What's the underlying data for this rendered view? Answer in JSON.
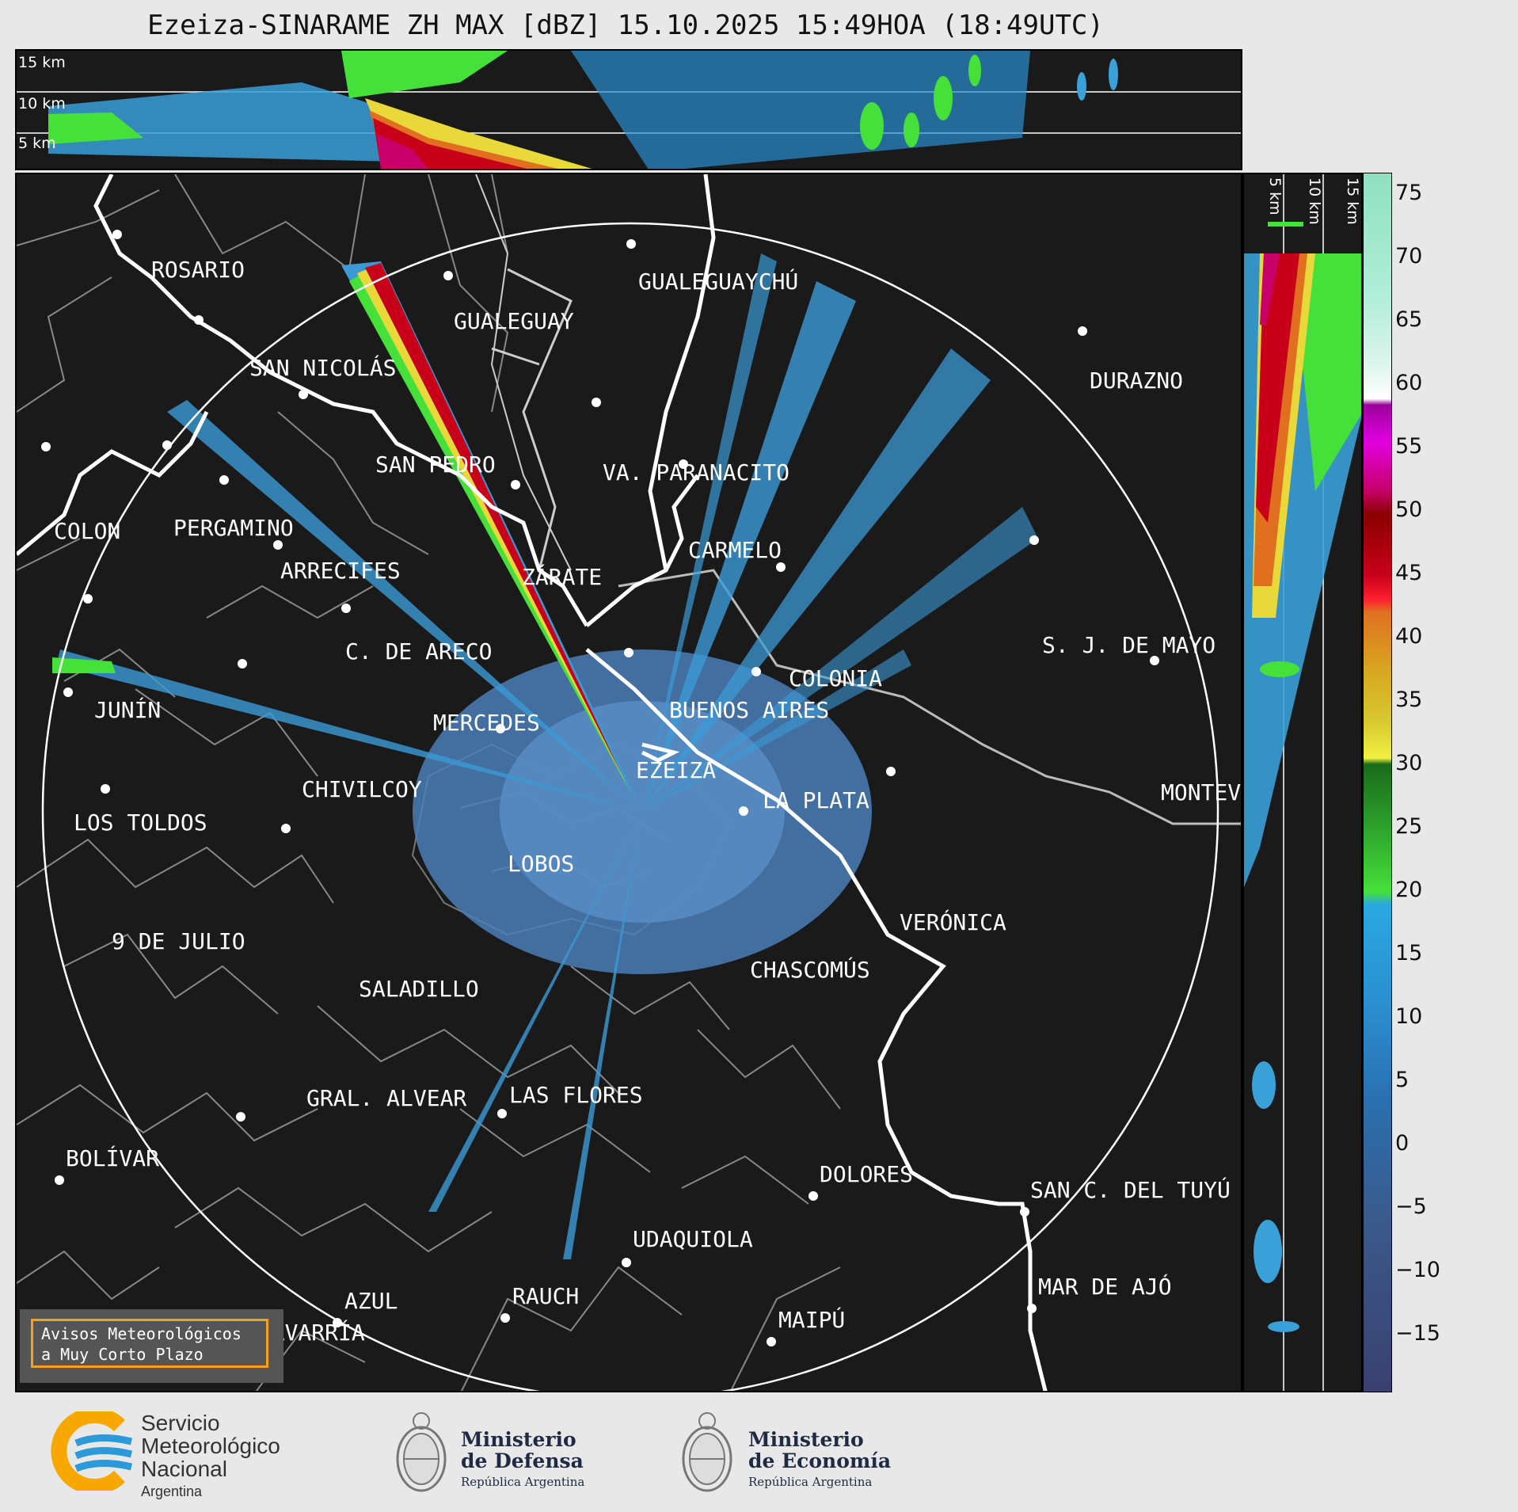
{
  "title": "Ezeiza-SINARAME ZH MAX [dBZ] 15.10.2025 15:49HOA (18:49UTC)",
  "top_panel": {
    "altitudes": [
      "15 km",
      "10 km",
      "5 km"
    ]
  },
  "side_panel": {
    "altitudes": [
      "5 km",
      "10 km",
      "15 km"
    ]
  },
  "colorbar": {
    "ticks": [
      "75",
      "70",
      "65",
      "60",
      "55",
      "50",
      "45",
      "40",
      "35",
      "30",
      "25",
      "20",
      "15",
      "10",
      "5",
      "0",
      "−5",
      "−10",
      "−15"
    ],
    "range": [
      -20,
      77
    ]
  },
  "cities": [
    {
      "name": "ROSARIO"
    },
    {
      "name": "GUALEGUAYCHÚ"
    },
    {
      "name": "GUALEGUAY"
    },
    {
      "name": "SAN NICOLÁS"
    },
    {
      "name": "DURAZNO"
    },
    {
      "name": "SAN PEDRO"
    },
    {
      "name": "VA. PARANACITO"
    },
    {
      "name": "COLON"
    },
    {
      "name": "PERGAMINO"
    },
    {
      "name": "CARMELO"
    },
    {
      "name": "ARRECIFES"
    },
    {
      "name": "ZÁRATE"
    },
    {
      "name": "S. J. DE MAYO"
    },
    {
      "name": "C. DE ARECO"
    },
    {
      "name": "COLONIA"
    },
    {
      "name": "JUNÍN"
    },
    {
      "name": "BUENOS AIRES"
    },
    {
      "name": "MERCEDES"
    },
    {
      "name": "EZEIZA"
    },
    {
      "name": "MONTEV"
    },
    {
      "name": "CHIVILCOY"
    },
    {
      "name": "LA PLATA"
    },
    {
      "name": "LOS TOLDOS"
    },
    {
      "name": "LOBOS"
    },
    {
      "name": "VERÓNICA"
    },
    {
      "name": "9 DE JULIO"
    },
    {
      "name": "CHASCOMÚS"
    },
    {
      "name": "SALADILLO"
    },
    {
      "name": "GRAL. ALVEAR"
    },
    {
      "name": "LAS FLORES"
    },
    {
      "name": "BOLÍVAR"
    },
    {
      "name": "DOLORES"
    },
    {
      "name": "SAN C. DEL TUYÚ"
    },
    {
      "name": "UDAQUIOLA"
    },
    {
      "name": "MAR DE AJÓ"
    },
    {
      "name": "AZUL"
    },
    {
      "name": "RAUCH"
    },
    {
      "name": "MAIPÚ"
    },
    {
      "name": "OLAVARRÍA"
    }
  ],
  "alert": {
    "line1": "Avisos Meteorológicos",
    "line2": "a Muy Corto Plazo"
  },
  "footer": {
    "smn": {
      "line1": "Servicio",
      "line2": "Meteorológico",
      "line3": "Nacional",
      "line4": "Argentina"
    },
    "defensa": {
      "line1": "Ministerio",
      "line2": "de Defensa",
      "line3": "República Argentina"
    },
    "economia": {
      "line1": "Ministerio",
      "line2": "de Economía",
      "line3": "República Argentina"
    }
  },
  "colors": {
    "background": "#1a1a1a",
    "page": "#e8e8e8",
    "alert_border": "#f4a21a",
    "range_ring": "#ffffff"
  }
}
